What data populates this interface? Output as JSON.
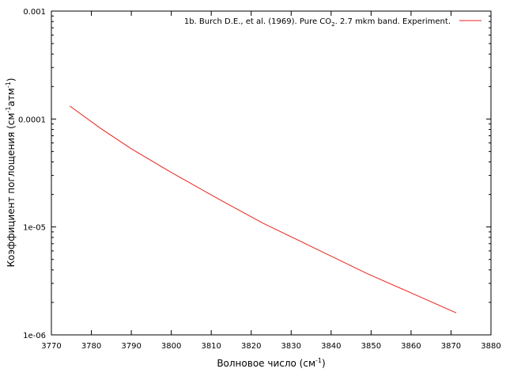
{
  "chart_data": {
    "type": "line",
    "xlabel": "Волновое число (см",
    "xlabel_sup": "-1",
    "xlabel_tail": ")",
    "ylabel": "Коэффициент поглощения (см",
    "ylabel_sup1": "-1",
    "ylabel_mid": "атм",
    "ylabel_sup2": "-1",
    "ylabel_tail": ")",
    "xlim": [
      3770,
      3880
    ],
    "ylim": [
      1e-06,
      0.001
    ],
    "yscale": "log",
    "grid": false,
    "legend_position": "top-right",
    "x_ticks": [
      {
        "value": 3770,
        "label": "3770"
      },
      {
        "value": 3780,
        "label": "3780"
      },
      {
        "value": 3790,
        "label": "3790"
      },
      {
        "value": 3800,
        "label": "3800"
      },
      {
        "value": 3810,
        "label": "3810"
      },
      {
        "value": 3820,
        "label": "3820"
      },
      {
        "value": 3830,
        "label": "3830"
      },
      {
        "value": 3840,
        "label": "3840"
      },
      {
        "value": 3850,
        "label": "3850"
      },
      {
        "value": 3860,
        "label": "3860"
      },
      {
        "value": 3870,
        "label": "3870"
      },
      {
        "value": 3880,
        "label": "3880"
      }
    ],
    "y_ticks": [
      {
        "value": 0.001,
        "label": "0.001"
      },
      {
        "value": 0.0001,
        "label": "0.0001"
      },
      {
        "value": 1e-05,
        "label": "1e-05"
      },
      {
        "value": 1e-06,
        "label": "1e-06"
      }
    ],
    "series": [
      {
        "name": "1b. Burch D.E., et al. (1969). Pure CO",
        "name_sub": "2",
        "name_tail": ". 2.7 mkm band. Experiment.",
        "color": "#e8221b",
        "x": [
          3774.6,
          3782.3,
          3790.0,
          3800.0,
          3812.0,
          3823.0,
          3835.0,
          3849.0,
          3860.0,
          3871.3
        ],
        "y": [
          0.000132,
          8.2e-05,
          5.3e-05,
          3.2e-05,
          1.8e-05,
          1.08e-05,
          6.6e-06,
          3.7e-06,
          2.45e-06,
          1.6e-06
        ]
      }
    ]
  }
}
